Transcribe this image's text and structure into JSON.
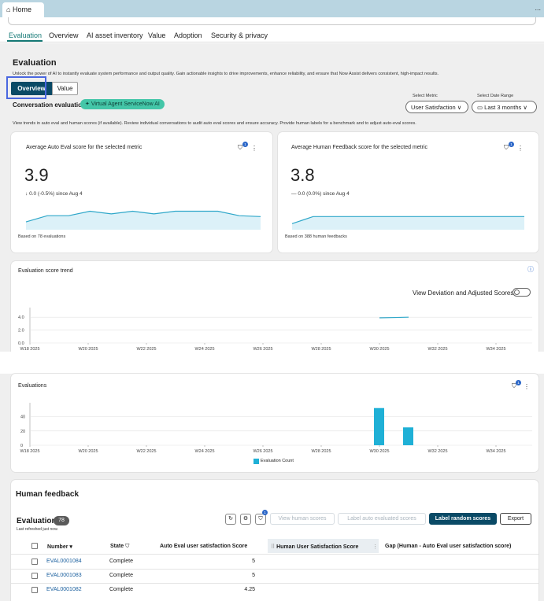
{
  "browser_tab": {
    "home_icon": "home-icon",
    "label": "Home",
    "more": "..."
  },
  "nav_tabs": [
    {
      "label": "Evaluation",
      "active": true
    },
    {
      "label": "Overview",
      "active": false
    },
    {
      "label": "AI asset inventory",
      "active": false
    },
    {
      "label": "Value",
      "active": false
    },
    {
      "label": "Adoption",
      "active": false
    },
    {
      "label": "Security & privacy",
      "active": false
    }
  ],
  "evaluation": {
    "title": "Evaluation",
    "description": "Unlock the power of AI to instantly evaluate system performance and output quality. Gain actionable insights to drive improvements, enhance reliability, and ensure that Now Assist delivers consistent, high-impact results.",
    "segments": {
      "overview": "Overview",
      "value": "Value"
    },
    "conversation_title": "Conversation evaluation",
    "conversation_pill": "Virtual Agent ServiceNow AI",
    "select_metric_label": "Select Metric",
    "select_metric_value": "User Satisfaction",
    "date_range_label": "Select Date Range",
    "date_range_value": "Last 3 months",
    "instructions": "View trends in auto eval and human scores (if available). Review individual conversations to audit auto eval scores and ensure accuracy. Provide human labels for a benchmark and to adjust auto-eval scores."
  },
  "cards": {
    "auto": {
      "title": "Average Auto Eval score for the selected metric",
      "value": "3.9",
      "change": "0.0 (-0.5%) since Aug 4",
      "arrow": "↓",
      "based": "Based on 78 evaluations",
      "badge": "1",
      "sparkline": [
        3.2,
        3.9,
        3.9,
        4.4,
        4.1,
        4.4,
        4.1,
        4.4,
        4.4,
        4.4,
        3.9,
        3.8
      ]
    },
    "human": {
      "title": "Average Human Feedback score for the selected metric",
      "value": "3.8",
      "change": "0.0 (0.0%) since Aug 4",
      "arrow": "—",
      "based": "Based on 388 human feedbacks",
      "badge": "1",
      "sparkline": [
        3.0,
        3.8,
        3.8,
        3.8,
        3.8,
        3.8,
        3.8,
        3.8,
        3.8,
        3.8,
        3.8,
        3.8
      ]
    }
  },
  "trend": {
    "title": "Evaluation score trend",
    "toggle_label": "View Deviation and Adjusted Scores",
    "info_icon": "info-icon"
  },
  "evaluations_chart": {
    "title": "Evaluations",
    "badge": "1",
    "legend": "Evaluation Count"
  },
  "chart_data": [
    {
      "type": "line",
      "title": "Evaluation score trend",
      "x": [
        "W18 2025",
        "W20 2025",
        "W22 2025",
        "W24 2025",
        "W26 2025",
        "W28 2025",
        "W30 2025",
        "W32 2025",
        "W34 2025"
      ],
      "yticks": [
        0.0,
        2.0,
        4.0
      ],
      "ylim": [
        0,
        5
      ],
      "series": [
        {
          "points": [
            [
              30.0,
              3.9
            ],
            [
              31.0,
              4.0
            ]
          ]
        }
      ],
      "grid": true
    },
    {
      "type": "bar",
      "title": "Evaluations",
      "x": [
        "W18 2025",
        "W20 2025",
        "W22 2025",
        "W24 2025",
        "W26 2025",
        "W28 2025",
        "W30 2025",
        "W32 2025",
        "W34 2025"
      ],
      "yticks": [
        0,
        20,
        40
      ],
      "ylim": [
        0,
        55
      ],
      "series": [
        {
          "name": "Evaluation Count",
          "points": [
            [
              30.0,
              52
            ],
            [
              31.0,
              25
            ]
          ]
        }
      ],
      "grid": true,
      "color": "#1fb0d6"
    }
  ],
  "human_feedback": {
    "title": "Human feedback",
    "evaluations_label": "Evaluations",
    "count": "78",
    "last_refreshed": "Last refreshed just now.",
    "filter_badge": "1",
    "buttons": {
      "view_human": "View human scores",
      "label_auto": "Label auto evaluated scores",
      "label_random": "Label random scores",
      "export": "Export"
    },
    "columns": {
      "number": "Number",
      "state": "State",
      "auto": "Auto Eval user satisfaction Score",
      "human": "Human User Satisfaction Score",
      "gap": "Gap (Human - Auto Eval user satisfaction score)"
    },
    "rows": [
      {
        "number": "EVAL0001084",
        "state": "Complete",
        "auto": "5"
      },
      {
        "number": "EVAL0001083",
        "state": "Complete",
        "auto": "5"
      },
      {
        "number": "EVAL0001082",
        "state": "Complete",
        "auto": "4.25"
      }
    ]
  },
  "colors": {
    "accent": "#167a77",
    "primary": "#0a4a66",
    "bar": "#1fb0d6",
    "pill": "#44c6a8",
    "sparkline": "#2ea7c9"
  }
}
